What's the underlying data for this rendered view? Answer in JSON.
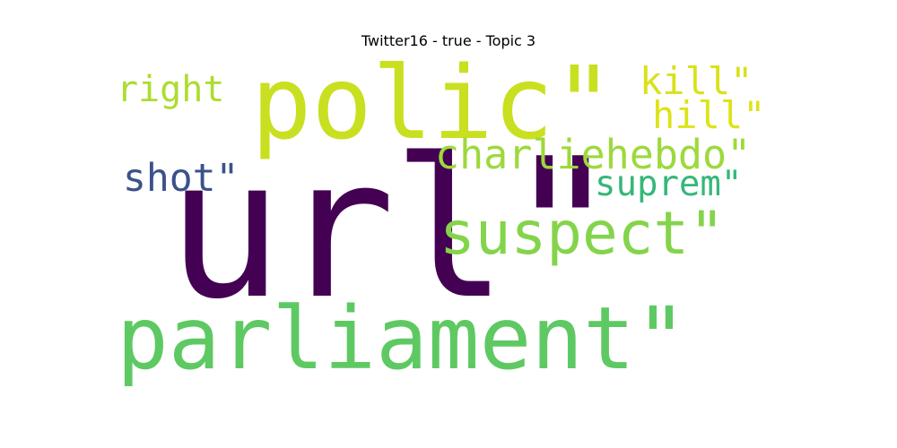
{
  "title": "Twitter16 - true - Topic 3",
  "words": [
    {
      "id": "url",
      "text": "url\"",
      "color": "#440154"
    },
    {
      "id": "polic",
      "text": "polic\"",
      "color": "#c8e020"
    },
    {
      "id": "parliament",
      "text": "parliament\"",
      "color": "#5ec962"
    },
    {
      "id": "suspect",
      "text": "suspect\"",
      "color": "#84d44b"
    },
    {
      "id": "charliehebdo",
      "text": "charliehebdo\"",
      "color": "#9dd93b"
    },
    {
      "id": "suprem",
      "text": "suprem\"",
      "color": "#35b779"
    },
    {
      "id": "shot",
      "text": "shot\"",
      "color": "#3b528b"
    },
    {
      "id": "right",
      "text": "right",
      "color": "#addc30"
    },
    {
      "id": "kill",
      "text": "kill\"",
      "color": "#d8e219"
    },
    {
      "id": "hill",
      "text": "hill\"",
      "color": "#dde318"
    }
  ]
}
